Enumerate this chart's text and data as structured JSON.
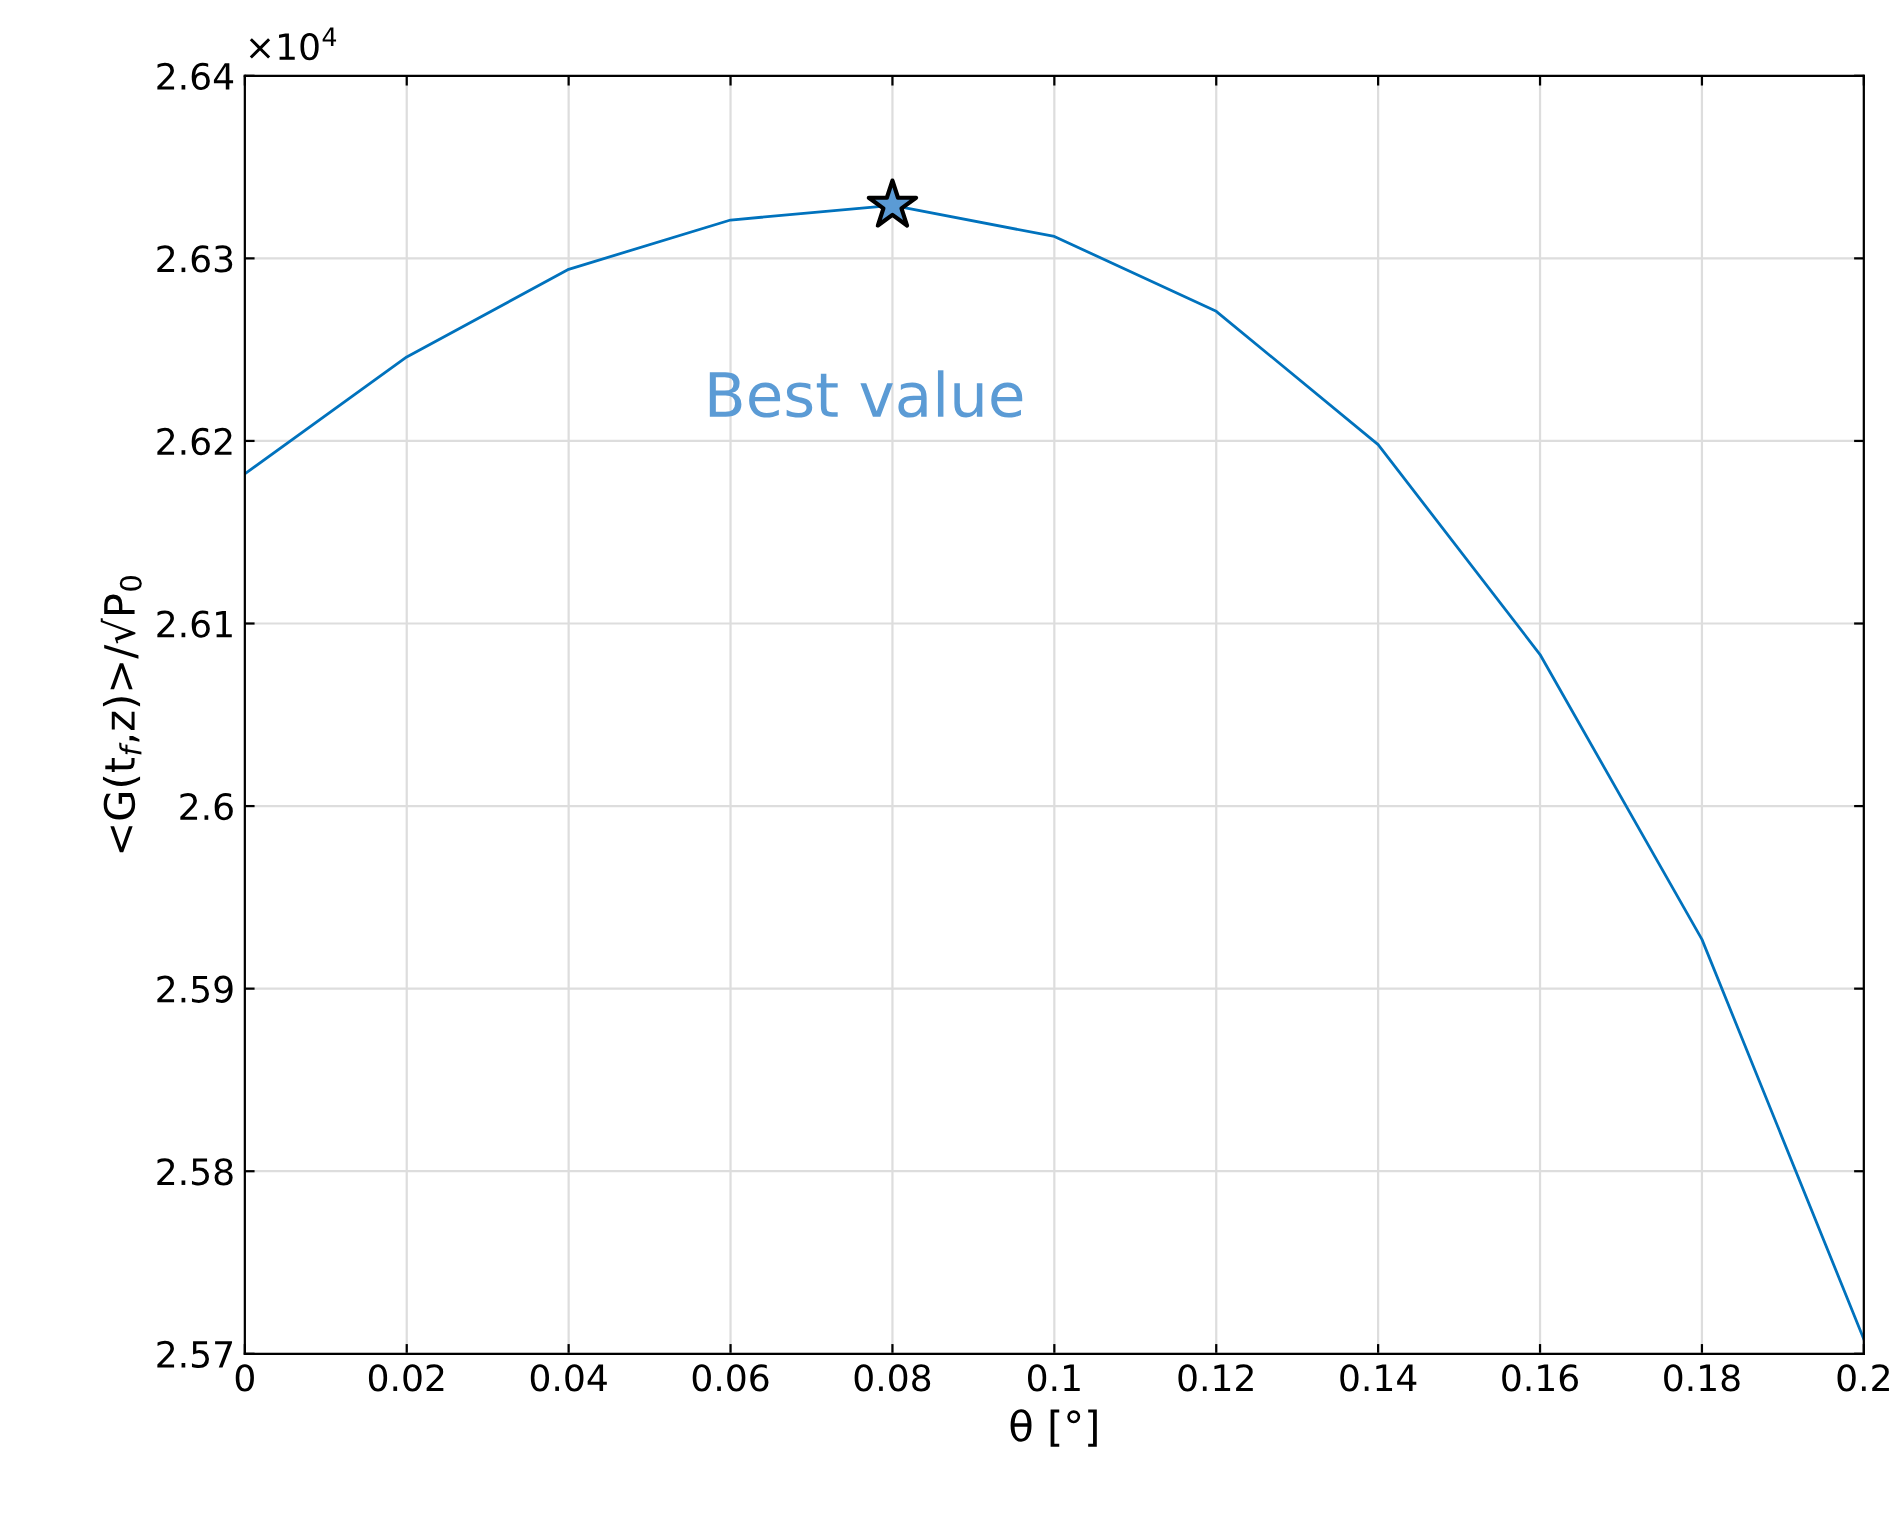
{
  "chart_data": {
    "type": "line",
    "xlabel": "θ [°]",
    "ylabel": "<G(t$_{f}$,z)>/√P$_{0}$",
    "x": [
      0,
      0.02,
      0.04,
      0.06,
      0.08,
      0.1,
      0.12,
      0.14,
      0.16,
      0.18,
      0.2
    ],
    "series": [
      {
        "color": "#0072bd",
        "values": [
          2.6182,
          2.6246,
          2.6294,
          2.6321,
          2.6329,
          2.6312,
          2.6271,
          2.6198,
          2.6083,
          2.5927,
          2.5708
        ]
      },
      {
        "type": "scatter",
        "color": "#5b9bd5",
        "marker": "star",
        "x": [
          0.08
        ],
        "values": [
          2.6329
        ]
      }
    ],
    "annotations": [
      {
        "text": "Best value",
        "x": 0.08,
        "y": 2.6329
      },
      "×10$^{4}$"
    ],
    "xlim": [
      0,
      0.2
    ],
    "xticks": [
      0,
      0.02,
      0.04,
      0.06,
      0.08,
      0.1,
      0.12,
      0.14,
      0.16,
      0.18,
      0.2
    ],
    "ylim": [
      2.57,
      2.64
    ],
    "yticks": [
      2.57,
      2.58,
      2.59,
      2.6,
      2.61,
      2.62,
      2.63,
      2.64
    ],
    "grid": true,
    "line_style": "solid",
    "marker": "none"
  }
}
